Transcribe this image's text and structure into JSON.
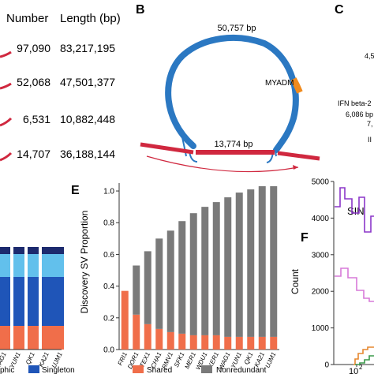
{
  "table": {
    "headers": [
      "Number",
      "Length (bp)"
    ],
    "rows": [
      {
        "number": "97,090",
        "length": "83,217,195"
      },
      {
        "number": "52,068",
        "length": "47,501,377"
      },
      {
        "number": "6,531",
        "length": "10,882,448"
      },
      {
        "number": "14,707",
        "length": "36,188,144"
      }
    ]
  },
  "panel_b": {
    "label": "B",
    "top_length": "50,757 bp",
    "gene": "MYADM",
    "bottom_length": "13,774 bp",
    "colors": {
      "circle": "#2b78c2",
      "bar": "#d0283f",
      "gene": "#f08a1c"
    }
  },
  "panel_c": {
    "label": "C",
    "fragments": [
      "4,5",
      "IFN beta-2",
      "6,086 bp",
      "7,",
      "II"
    ]
  },
  "panel_d": {
    "legend": [
      "phic",
      "Singleton"
    ],
    "x_labels": [
      "WAG1",
      "YUN1",
      "QK1",
      "KA21",
      "UJM1"
    ],
    "colors": {
      "dark": "#1f55b8",
      "light": "#62c0ec",
      "navy": "#1c2a6e",
      "orange": "#f06e4a"
    }
  },
  "chart_data": {
    "type": "bar",
    "ylabel": "Discovery SV Proportion",
    "ylim": [
      0,
      1.05
    ],
    "yticks": [
      "0.0",
      "0.2",
      "0.4",
      "0.6",
      "0.8",
      "1.0"
    ],
    "categories": [
      "FRI1",
      "DOR1",
      "TEX1",
      "CHA1",
      "RMV1",
      "SFK1",
      "MER1",
      "WDU1",
      "KER1",
      "WAG1",
      "YUN1",
      "QK1",
      "KA21",
      "UJM1"
    ],
    "series": [
      {
        "name": "Shared",
        "color": "#f06e4a",
        "values": [
          0.37,
          0.22,
          0.16,
          0.13,
          0.11,
          0.1,
          0.09,
          0.09,
          0.09,
          0.08,
          0.08,
          0.08,
          0.08,
          0.08
        ]
      },
      {
        "name": "Nonredundant",
        "color": "#7a7a7a",
        "values": [
          0.0,
          0.31,
          0.46,
          0.57,
          0.64,
          0.71,
          0.77,
          0.81,
          0.84,
          0.88,
          0.91,
          0.93,
          0.95,
          0.95
        ]
      }
    ],
    "panel_label": "E"
  },
  "panel_f": {
    "label": "F",
    "ylabel": "Count",
    "yticks": [
      "0",
      "1000",
      "2000",
      "3000",
      "4000",
      "5000"
    ],
    "xtick": "10",
    "xtick_exp": "2",
    "annotation": "SIN",
    "colors": {
      "purple": "#8b36c9",
      "pink": "#d77ad8",
      "orange": "#e6872e",
      "green": "#3a9a4a"
    }
  }
}
